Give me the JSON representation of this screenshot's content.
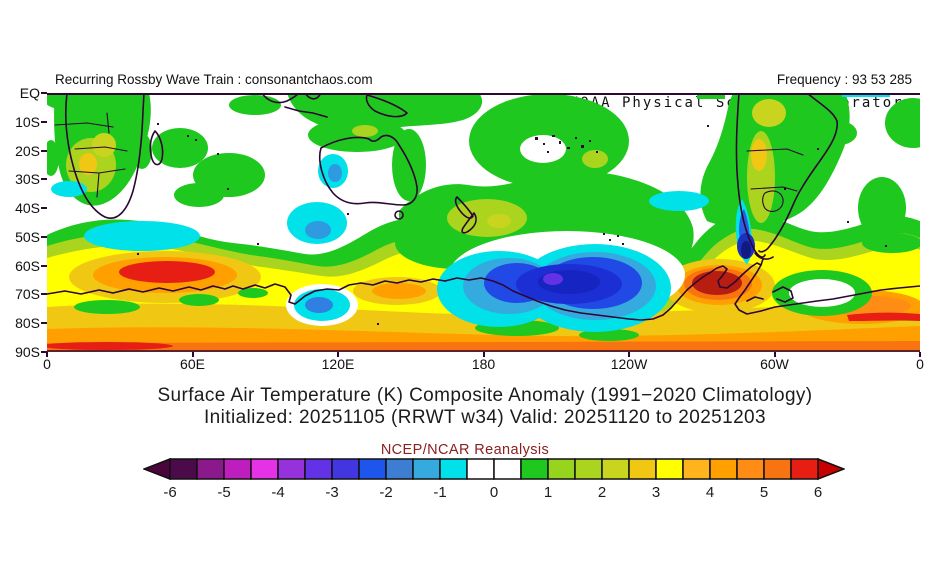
{
  "header": {
    "left": "Recurring Rossby Wave Train : consonantchaos.com",
    "right": "Frequency : 93 53 285",
    "org": "NOAA Physical Sciences Laboratory"
  },
  "map": {
    "lat_labels": [
      "EQ",
      "10S",
      "20S",
      "30S",
      "40S",
      "50S",
      "60S",
      "70S",
      "80S",
      "90S"
    ],
    "lon_labels": [
      "0",
      "60E",
      "120E",
      "180",
      "120W",
      "60W",
      "0"
    ]
  },
  "titles": {
    "line1": "Surface Air Temperature (K) Composite Anomaly (1991−2020 Climatology)",
    "line2": "Initialized: 20251105 (RRWT w34) Valid: 20251120 to 20251203",
    "dataset": "NCEP/NCAR Reanalysis"
  },
  "colorbar": {
    "ticks": [
      "-6",
      "-5",
      "-4",
      "-3",
      "-2",
      "-1",
      "0",
      "1",
      "2",
      "3",
      "4",
      "5",
      "6"
    ],
    "left_arrow_color": "#4a053c",
    "right_arrow_color": "#c80000",
    "segments": [
      {
        "from": -6,
        "to": -5.5,
        "color": "#4b0b4b"
      },
      {
        "from": -5.5,
        "to": -5,
        "color": "#8c198c"
      },
      {
        "from": -5,
        "to": -4.5,
        "color": "#bd1ebd"
      },
      {
        "from": -4.5,
        "to": -4,
        "color": "#e632e6"
      },
      {
        "from": -4,
        "to": -3.5,
        "color": "#9632dc"
      },
      {
        "from": -3.5,
        "to": -3,
        "color": "#6432e6"
      },
      {
        "from": -3,
        "to": -2.5,
        "color": "#4136e0"
      },
      {
        "from": -2.5,
        "to": -2,
        "color": "#1e55ec"
      },
      {
        "from": -2,
        "to": -1.5,
        "color": "#3d7ed2"
      },
      {
        "from": -1.5,
        "to": -1,
        "color": "#35aadf"
      },
      {
        "from": -1,
        "to": -0.5,
        "color": "#00e1e9"
      },
      {
        "from": -0.5,
        "to": 0,
        "color": "#ffffff"
      },
      {
        "from": 0,
        "to": 0.5,
        "color": "#ffffff"
      },
      {
        "from": 0.5,
        "to": 1,
        "color": "#1ec81e"
      },
      {
        "from": 1,
        "to": 1.5,
        "color": "#96d41e"
      },
      {
        "from": 1.5,
        "to": 2,
        "color": "#aad41e"
      },
      {
        "from": 2,
        "to": 2.5,
        "color": "#c8d41e"
      },
      {
        "from": 2.5,
        "to": 3,
        "color": "#f0c814"
      },
      {
        "from": 3,
        "to": 3.5,
        "color": "#ffff00"
      },
      {
        "from": 3.5,
        "to": 4,
        "color": "#ffb41e"
      },
      {
        "from": 4,
        "to": 4.5,
        "color": "#ffa000"
      },
      {
        "from": 4.5,
        "to": 5,
        "color": "#ff8c14"
      },
      {
        "from": 5,
        "to": 5.5,
        "color": "#f87410"
      },
      {
        "from": 5.5,
        "to": 6,
        "color": "#e61e14"
      }
    ]
  }
}
